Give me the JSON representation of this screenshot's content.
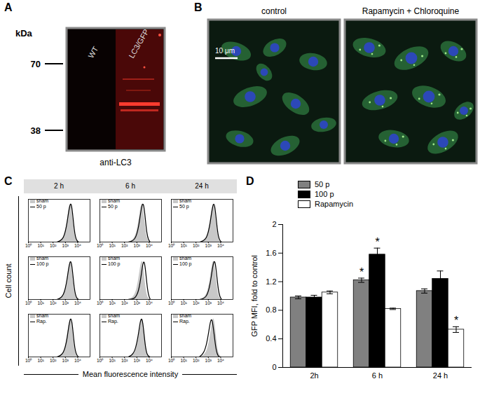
{
  "panel_labels": [
    "A",
    "B",
    "C",
    "D"
  ],
  "blot": {
    "unit_label": "kDa",
    "markers": [
      70,
      38
    ],
    "lanes": [
      "WT",
      "LC3/GFP"
    ],
    "antibody": "anti-LC3"
  },
  "micrographs": {
    "panels": [
      "control",
      "Rapamycin + Chloroquine"
    ],
    "scale_bar": "10 μm"
  },
  "chart_data": [
    {
      "type": "line",
      "columns": [
        "2 h",
        "6 h",
        "24 h"
      ],
      "xlabel": "Mean fluorescence intensity",
      "ylabel": "Cell count",
      "log": "x",
      "xlim": [
        1,
        100000
      ],
      "xticks": [
        {
          "value": 1,
          "label": "10⁰"
        },
        {
          "value": 10,
          "label": "10¹"
        },
        {
          "value": 100,
          "label": "10²"
        },
        {
          "value": 1000,
          "label": "10³"
        },
        {
          "value": 10000,
          "label": "10⁴"
        }
      ],
      "ylim": [
        0,
        110
      ],
      "tick_labels": "x",
      "legend": "top-left",
      "x": [
        200,
        400,
        700,
        1000,
        1400,
        1800,
        2300,
        2800,
        3400,
        4200,
        5200,
        6500,
        8500,
        12000
      ],
      "rows": [
        [
          {
            "series": [
              {
                "name": "sham",
                "type": "area",
                "color": "#c8c8c8",
                "values": [
                  0,
                  3,
                  12,
                  28,
                  52,
                  78,
                  96,
                  100,
                  88,
                  60,
                  32,
                  12,
                  3,
                  0
                ]
              },
              {
                "name": "50 p",
                "type": "line",
                "color": "#000000",
                "values": [
                  0,
                  3,
                  11,
                  27,
                  51,
                  77,
                  95,
                  100,
                  89,
                  62,
                  33,
                  13,
                  3,
                  0
                ]
              }
            ]
          },
          {
            "series": [
              {
                "name": "sham",
                "type": "area",
                "color": "#c8c8c8",
                "values": [
                  0,
                  3,
                  12,
                  28,
                  52,
                  78,
                  96,
                  100,
                  88,
                  60,
                  32,
                  12,
                  3,
                  0
                ]
              },
              {
                "name": "50 p",
                "type": "line",
                "color": "#000000",
                "values": [
                  0,
                  2,
                  8,
                  20,
                  40,
                  64,
                  86,
                  98,
                  99,
                  80,
                  50,
                  22,
                  6,
                  0
                ]
              }
            ]
          },
          {
            "series": [
              {
                "name": "sham",
                "type": "area",
                "color": "#c8c8c8",
                "values": [
                  0,
                  3,
                  12,
                  28,
                  52,
                  78,
                  96,
                  100,
                  88,
                  60,
                  32,
                  12,
                  3,
                  0
                ]
              },
              {
                "name": "50 p",
                "type": "line",
                "color": "#000000",
                "values": [
                  0,
                  3,
                  10,
                  25,
                  48,
                  74,
                  93,
                  100,
                  91,
                  65,
                  36,
                  14,
                  4,
                  0
                ]
              }
            ]
          }
        ],
        [
          {
            "series": [
              {
                "name": "sham",
                "type": "area",
                "color": "#c8c8c8",
                "values": [
                  0,
                  3,
                  12,
                  28,
                  52,
                  78,
                  96,
                  100,
                  88,
                  60,
                  32,
                  12,
                  3,
                  0
                ]
              },
              {
                "name": "100 p",
                "type": "line",
                "color": "#000000",
                "values": [
                  0,
                  3,
                  12,
                  28,
                  53,
                  79,
                  96,
                  99,
                  87,
                  59,
                  31,
                  12,
                  3,
                  0
                ]
              }
            ]
          },
          {
            "series": [
              {
                "name": "sham",
                "type": "area",
                "color": "#c8c8c8",
                "values": [
                  0,
                  3,
                  12,
                  28,
                  52,
                  78,
                  96,
                  100,
                  88,
                  60,
                  32,
                  12,
                  3,
                  0
                ]
              },
              {
                "name": "100 p",
                "type": "line",
                "color": "#000000",
                "values": [
                  0,
                  1,
                  4,
                  11,
                  24,
                  42,
                  64,
                  84,
                  98,
                  96,
                  72,
                  40,
                  12,
                  1
                ]
              }
            ]
          },
          {
            "series": [
              {
                "name": "sham",
                "type": "area",
                "color": "#c8c8c8",
                "values": [
                  0,
                  3,
                  12,
                  28,
                  52,
                  78,
                  96,
                  100,
                  88,
                  60,
                  32,
                  12,
                  3,
                  0
                ]
              },
              {
                "name": "100 p",
                "type": "line",
                "color": "#000000",
                "values": [
                  0,
                  2,
                  8,
                  20,
                  40,
                  63,
                  85,
                  98,
                  99,
                  80,
                  52,
                  24,
                  7,
                  0
                ]
              }
            ]
          }
        ],
        [
          {
            "series": [
              {
                "name": "sham",
                "type": "area",
                "color": "#c8c8c8",
                "values": [
                  0,
                  3,
                  12,
                  28,
                  52,
                  78,
                  96,
                  100,
                  88,
                  60,
                  32,
                  12,
                  3,
                  0
                ]
              },
              {
                "name": "Rap.",
                "type": "line",
                "color": "#000000",
                "values": [
                  0,
                  3,
                  11,
                  26,
                  49,
                  75,
                  94,
                  100,
                  91,
                  64,
                  35,
                  14,
                  4,
                  0
                ]
              }
            ]
          },
          {
            "series": [
              {
                "name": "sham",
                "type": "area",
                "color": "#c8c8c8",
                "values": [
                  0,
                  3,
                  12,
                  28,
                  52,
                  78,
                  96,
                  100,
                  88,
                  60,
                  32,
                  12,
                  3,
                  0
                ]
              },
              {
                "name": "Rap.",
                "type": "line",
                "color": "#000000",
                "values": [
                  0,
                  4,
                  16,
                  36,
                  62,
                  88,
                  100,
                  94,
                  76,
                  46,
                  22,
                  8,
                  2,
                  0
                ]
              }
            ]
          },
          {
            "series": [
              {
                "name": "sham",
                "type": "area",
                "color": "#c8c8c8",
                "values": [
                  0,
                  3,
                  12,
                  28,
                  52,
                  78,
                  96,
                  100,
                  88,
                  60,
                  32,
                  12,
                  3,
                  0
                ]
              },
              {
                "name": "Rap.",
                "type": "line",
                "color": "#000000",
                "values": [
                  1,
                  8,
                  30,
                  58,
                  88,
                  100,
                  86,
                  64,
                  42,
                  20,
                  8,
                  2,
                  0,
                  0
                ]
              }
            ]
          }
        ]
      ]
    },
    {
      "type": "bar",
      "categories": [
        "2h",
        "6 h",
        "24 h"
      ],
      "series": [
        {
          "name": "50 p",
          "color": "#808080",
          "values": [
            0.98,
            1.22,
            1.07
          ],
          "errors": [
            0.02,
            0.03,
            0.03
          ]
        },
        {
          "name": "100 p",
          "color": "#000000",
          "values": [
            0.98,
            1.58,
            1.24
          ],
          "errors": [
            0.03,
            0.09,
            0.11
          ]
        },
        {
          "name": "Rapamycin",
          "color": "#ffffff",
          "values": [
            1.05,
            0.82,
            0.53
          ],
          "errors": [
            0.02,
            0.01,
            0.04
          ]
        }
      ],
      "ylabel": "GFP MFI, fold to control",
      "ylim": [
        0,
        2
      ],
      "yticks": [
        0,
        0.4,
        0.8,
        1.2,
        1.6,
        2
      ],
      "legend": "top-left",
      "annotations": [
        {
          "text": "*",
          "category": "6 h",
          "series": "50 p"
        },
        {
          "text": "*",
          "category": "6 h",
          "series": "100 p"
        },
        {
          "text": "*",
          "category": "24 h",
          "series": "Rapamycin"
        }
      ]
    }
  ]
}
